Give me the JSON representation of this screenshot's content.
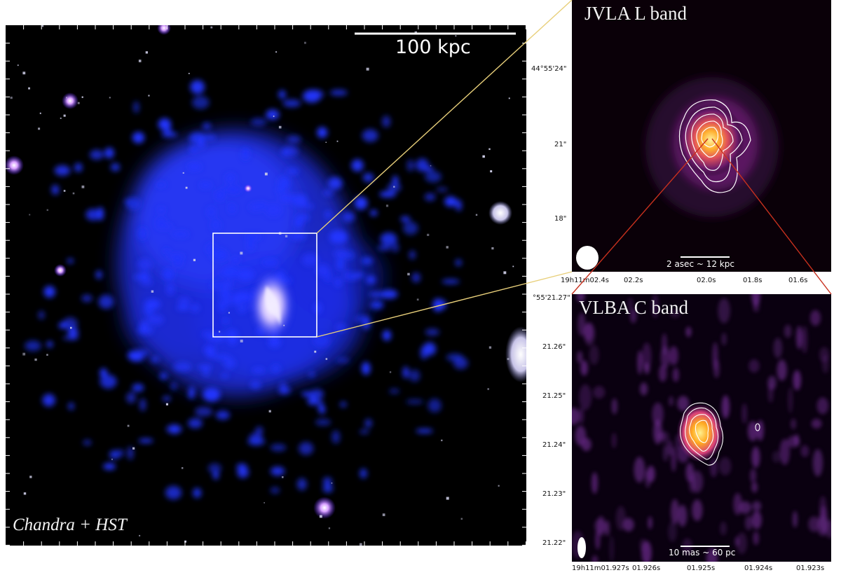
{
  "main_panel": {
    "label": "Chandra + HST",
    "scale_bar": "100 kpc"
  },
  "jvla_panel": {
    "title": "JVLA L band",
    "scale_bar": "2 asec ~ 12 kpc",
    "dec_ticks": [
      "44°55'24\"",
      "21\"",
      "18\""
    ],
    "ra_ticks": [
      "19h11m02.4s",
      "02.2s",
      "02.0s",
      "01.8s",
      "01.6s"
    ]
  },
  "vlba_panel": {
    "title": "VLBA C band",
    "scale_bar": "10 mas ~ 60 pc",
    "dec_ticks": [
      "°55'21.27\"",
      "21.26\"",
      "21.25\"",
      "21.24\"",
      "21.23\"",
      "21.22\""
    ],
    "ra_ticks": [
      "19h11m01.927s",
      "01.926s",
      "01.925s",
      "01.924s",
      "01.923s"
    ]
  },
  "colors": {
    "xray": "#1f36ff",
    "connector_yellow": "#e8cf7a",
    "connector_red": "#c8301e",
    "contour": "#ffffff"
  }
}
